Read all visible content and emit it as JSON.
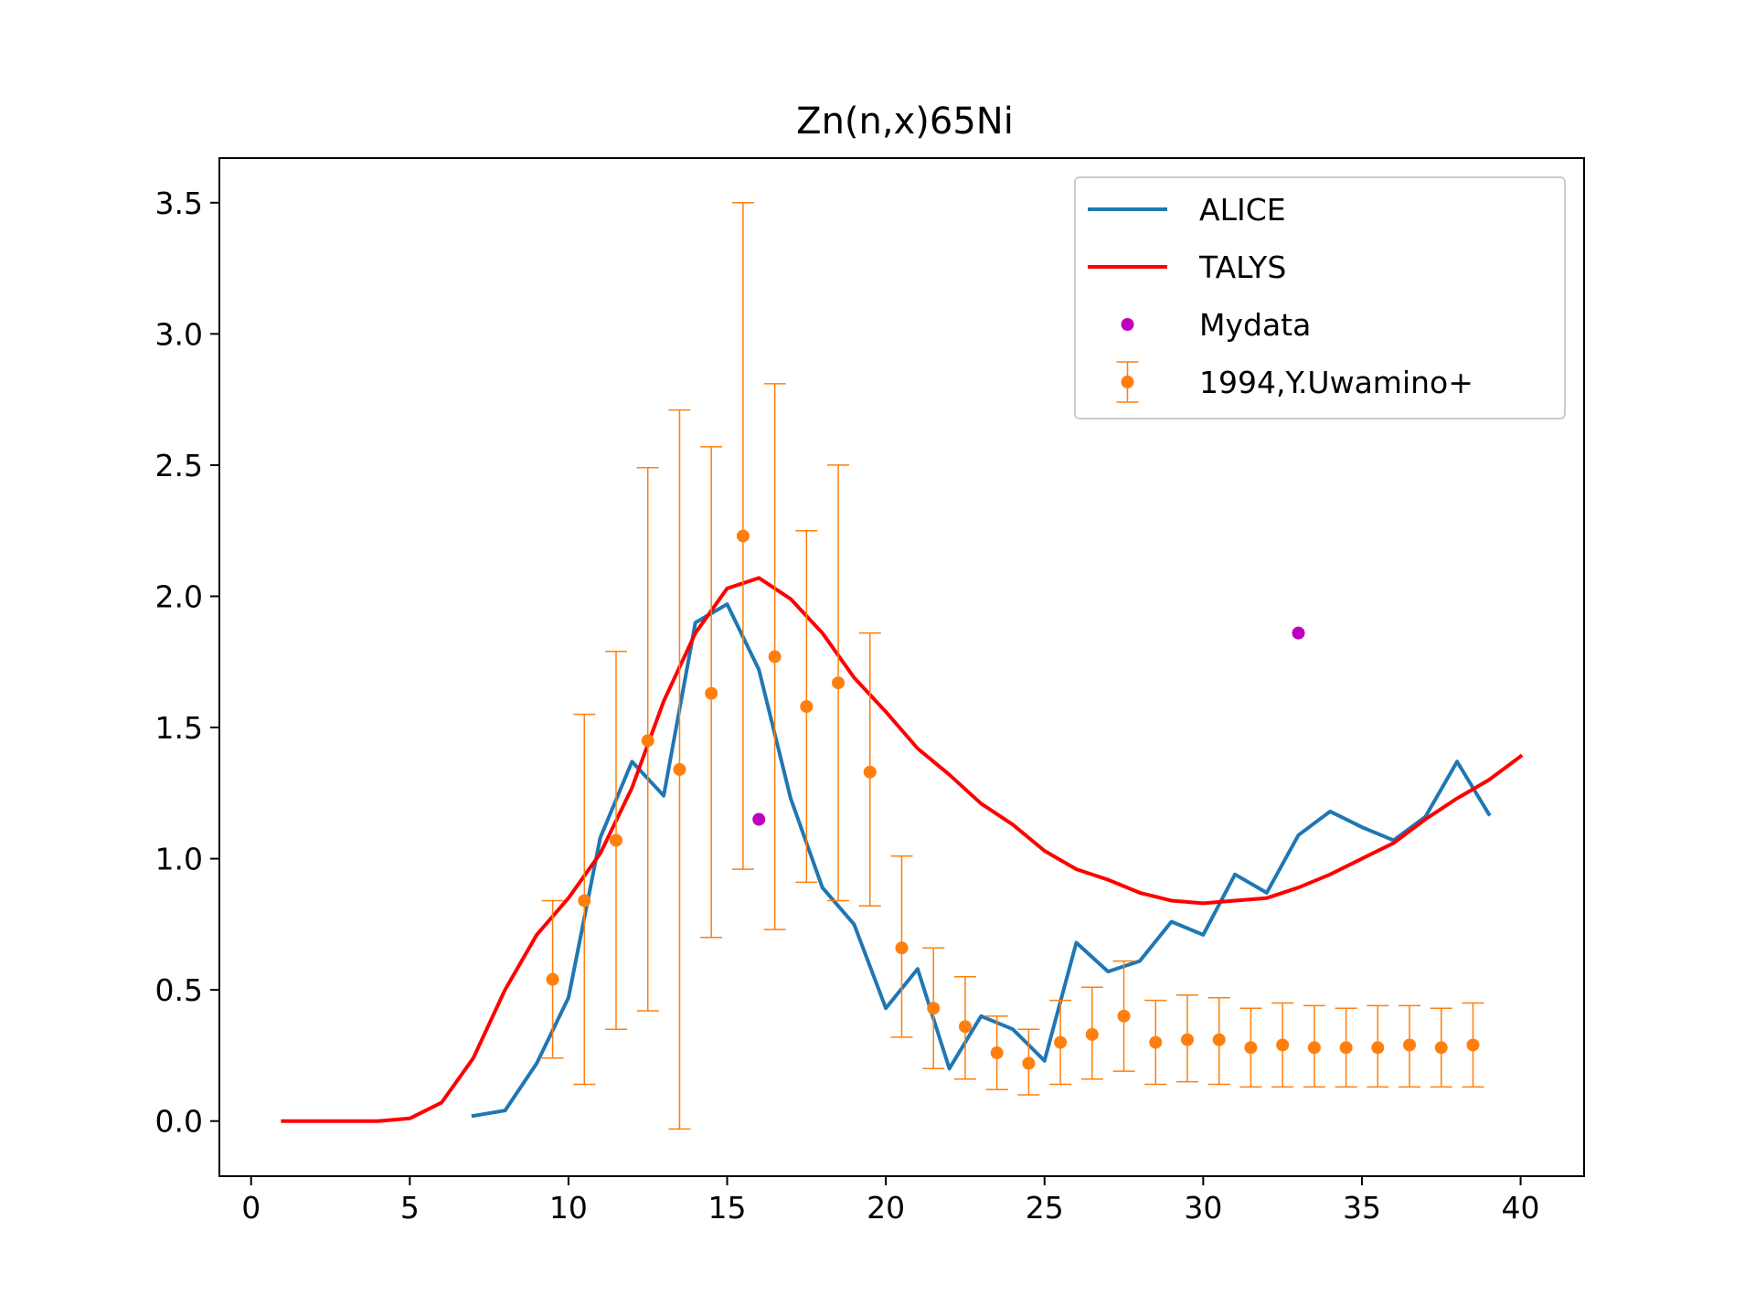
{
  "chart_data": {
    "type": "line",
    "title": "Zn(n,x)65Ni",
    "xlabel": "",
    "ylabel": "",
    "xlim": [
      -1,
      42
    ],
    "ylim": [
      -0.21,
      3.67
    ],
    "xticks": [
      0,
      5,
      10,
      15,
      20,
      25,
      30,
      35,
      40
    ],
    "yticks": [
      0.0,
      0.5,
      1.0,
      1.5,
      2.0,
      2.5,
      3.0,
      3.5
    ],
    "xtick_labels": [
      "0",
      "5",
      "10",
      "15",
      "20",
      "25",
      "30",
      "35",
      "40"
    ],
    "ytick_labels": [
      "0.0",
      "0.5",
      "1.0",
      "1.5",
      "2.0",
      "2.5",
      "3.0",
      "3.5"
    ],
    "grid": false,
    "legend_position": "top-right",
    "series": [
      {
        "name": "ALICE",
        "kind": "line",
        "color": "#1f77b4",
        "x": [
          7,
          8,
          9,
          10,
          11,
          12,
          13,
          14,
          15,
          16,
          17,
          18,
          19,
          20,
          21,
          22,
          23,
          24,
          25,
          26,
          27,
          28,
          29,
          30,
          31,
          32,
          33,
          34,
          35,
          36,
          37,
          38,
          39
        ],
        "y": [
          0.02,
          0.04,
          0.22,
          0.47,
          1.08,
          1.37,
          1.24,
          1.9,
          1.97,
          1.72,
          1.23,
          0.89,
          0.75,
          0.43,
          0.58,
          0.2,
          0.4,
          0.35,
          0.23,
          0.68,
          0.57,
          0.61,
          0.76,
          0.71,
          0.94,
          0.87,
          1.09,
          1.18,
          1.12,
          1.07,
          1.16,
          1.37,
          1.17
        ]
      },
      {
        "name": "TALYS",
        "kind": "line",
        "color": "#ff0000",
        "x": [
          1,
          2,
          3,
          4,
          5,
          6,
          7,
          8,
          9,
          10,
          11,
          12,
          13,
          14,
          15,
          16,
          17,
          18,
          19,
          20,
          21,
          22,
          23,
          24,
          25,
          26,
          27,
          28,
          29,
          30,
          31,
          32,
          33,
          34,
          35,
          36,
          37,
          38,
          39,
          40
        ],
        "y": [
          0,
          0,
          0,
          0,
          0.01,
          0.07,
          0.24,
          0.5,
          0.71,
          0.85,
          1.02,
          1.27,
          1.6,
          1.86,
          2.03,
          2.07,
          1.99,
          1.86,
          1.69,
          1.56,
          1.42,
          1.32,
          1.21,
          1.13,
          1.03,
          0.96,
          0.92,
          0.87,
          0.84,
          0.83,
          0.84,
          0.85,
          0.89,
          0.94,
          1.0,
          1.06,
          1.15,
          1.23,
          1.3,
          1.39
        ]
      },
      {
        "name": "Mydata",
        "kind": "scatter",
        "color": "#bf00bf",
        "x": [
          16,
          33
        ],
        "y": [
          1.15,
          1.86
        ]
      },
      {
        "name": "1994,Y.Uwamino+",
        "kind": "errorbar",
        "color": "#ff7f0e",
        "x": [
          9.5,
          10.5,
          11.5,
          12.5,
          13.5,
          14.5,
          15.5,
          16.5,
          17.5,
          18.5,
          19.5,
          20.5,
          21.5,
          22.5,
          23.5,
          24.5,
          25.5,
          26.5,
          27.5,
          28.5,
          29.5,
          30.5,
          31.5,
          32.5,
          33.5,
          34.5,
          35.5,
          36.5,
          37.5,
          38.5
        ],
        "y": [
          0.54,
          0.84,
          1.07,
          1.45,
          1.34,
          1.63,
          2.23,
          1.77,
          1.58,
          1.67,
          1.33,
          0.66,
          0.43,
          0.36,
          0.26,
          0.22,
          0.3,
          0.33,
          0.4,
          0.3,
          0.31,
          0.31,
          0.28,
          0.29,
          0.28,
          0.28,
          0.28,
          0.29,
          0.28,
          0.29
        ],
        "yerr_low": [
          0.24,
          0.14,
          0.35,
          0.42,
          -0.03,
          0.7,
          0.96,
          0.73,
          0.91,
          0.84,
          0.82,
          0.32,
          0.2,
          0.16,
          0.12,
          0.1,
          0.14,
          0.16,
          0.19,
          0.14,
          0.15,
          0.14,
          0.13,
          0.13,
          0.13,
          0.13,
          0.13,
          0.13,
          0.13,
          0.13
        ],
        "yerr_high": [
          0.84,
          1.55,
          1.79,
          2.49,
          2.71,
          2.57,
          3.5,
          2.81,
          2.25,
          2.5,
          1.86,
          1.01,
          0.66,
          0.55,
          0.4,
          0.35,
          0.46,
          0.51,
          0.61,
          0.46,
          0.48,
          0.47,
          0.43,
          0.45,
          0.44,
          0.43,
          0.44,
          0.44,
          0.43,
          0.45
        ]
      }
    ]
  }
}
